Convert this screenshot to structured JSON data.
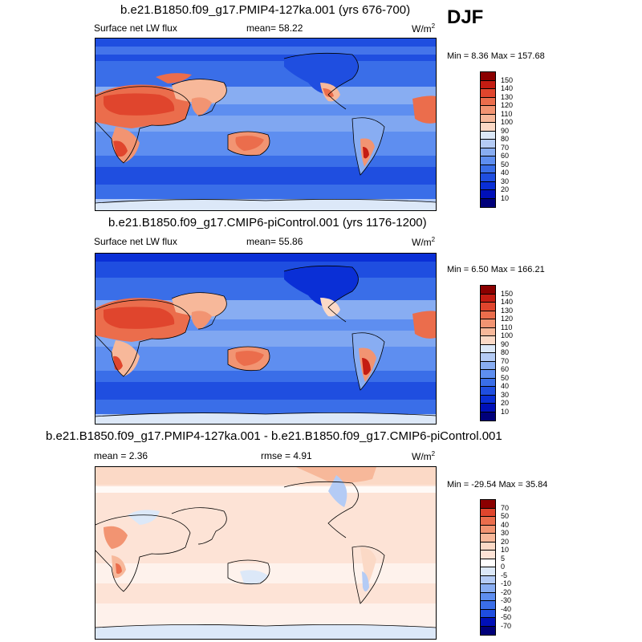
{
  "season": "DJF",
  "units": "W/m",
  "units_sup": "2",
  "panels": [
    {
      "title": "b.e21.B1850.f09_g17.PMIP4-127ka.001 (yrs 676-700)",
      "field": "Surface net LW flux",
      "stat1_label": "mean=",
      "stat1_value": "58.22",
      "minmax": "Min =   8.36 Max = 157.68"
    },
    {
      "title": "b.e21.B1850.f09_g17.CMIP6-piControl.001 (yrs 1176-1200)",
      "field": "Surface net LW flux",
      "stat1_label": "mean=",
      "stat1_value": "55.86",
      "minmax": "Min =   6.50 Max = 166.21"
    },
    {
      "title": "b.e21.B1850.f09_g17.PMIP4-127ka.001 - b.e21.B1850.f09_g17.CMIP6-piControl.001",
      "stat1_label": "mean =",
      "stat1_value": "2.36",
      "stat2_label": "rmse =",
      "stat2_value": "4.91",
      "minmax": "Min = -29.54 Max =  35.84"
    }
  ],
  "chart_data": [
    {
      "type": "heatmap",
      "title": "b.e21.B1850.f09_g17.PMIP4-127ka.001 (yrs 676-700)",
      "variable": "Surface net LW flux",
      "units": "W/m2",
      "mean": 58.22,
      "min": 8.36,
      "max": 157.68,
      "colorbar_levels": [
        10,
        20,
        30,
        40,
        50,
        60,
        70,
        80,
        90,
        100,
        110,
        120,
        130,
        140,
        150
      ],
      "colorbar_labels": [
        "150",
        "140",
        "130",
        "120",
        "110",
        "100",
        "90",
        "80",
        "70",
        "60",
        "50",
        "40",
        "30",
        "20",
        "10"
      ]
    },
    {
      "type": "heatmap",
      "title": "b.e21.B1850.f09_g17.CMIP6-piControl.001 (yrs 1176-1200)",
      "variable": "Surface net LW flux",
      "units": "W/m2",
      "mean": 55.86,
      "min": 6.5,
      "max": 166.21,
      "colorbar_levels": [
        10,
        20,
        30,
        40,
        50,
        60,
        70,
        80,
        90,
        100,
        110,
        120,
        130,
        140,
        150
      ],
      "colorbar_labels": [
        "150",
        "140",
        "130",
        "120",
        "110",
        "100",
        "90",
        "80",
        "70",
        "60",
        "50",
        "40",
        "30",
        "20",
        "10"
      ]
    },
    {
      "type": "heatmap",
      "title": "b.e21.B1850.f09_g17.PMIP4-127ka.001 - b.e21.B1850.f09_g17.CMIP6-piControl.001",
      "units": "W/m2",
      "mean": 2.36,
      "rmse": 4.91,
      "min": -29.54,
      "max": 35.84,
      "colorbar_levels": [
        -70,
        -50,
        -40,
        -30,
        -20,
        -10,
        -5,
        0,
        5,
        10,
        20,
        30,
        40,
        50,
        70
      ],
      "colorbar_labels": [
        "70",
        "50",
        "40",
        "30",
        "20",
        "10",
        "5",
        "0",
        "-5",
        "-10",
        "-20",
        "-30",
        "-40",
        "-50",
        "-70"
      ]
    }
  ],
  "colors": {
    "abs_scale": [
      "#00007a",
      "#0010b8",
      "#0a2fd6",
      "#1f4ee0",
      "#3a6ee8",
      "#5e8ef0",
      "#88adf2",
      "#b4cbf5",
      "#dce8f8",
      "#fbd9c6",
      "#f7b89a",
      "#f29472",
      "#eb6d4c",
      "#e0452d",
      "#c41c12",
      "#8b0000"
    ],
    "diff_scale": [
      "#00007a",
      "#0010b8",
      "#1f4ee0",
      "#3a6ee8",
      "#5e8ef0",
      "#88adf2",
      "#b4cbf5",
      "#dce8f8",
      "#ffffff",
      "#fde3d6",
      "#fbd9c6",
      "#f7b89a",
      "#f29472",
      "#eb6d4c",
      "#e0452d",
      "#8b0000"
    ]
  }
}
